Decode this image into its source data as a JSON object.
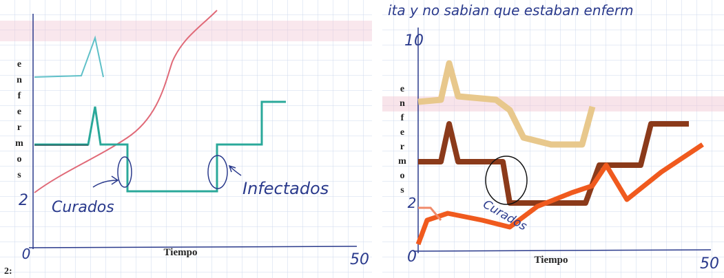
{
  "panels": [
    {
      "y_label_letters": [
        "e",
        "n",
        "f",
        "e",
        "r",
        "m",
        "o",
        "s"
      ],
      "x_label": "Tiempo",
      "x_start": "0",
      "x_end": "50",
      "y_mark": "2",
      "annotations": [
        "Curados",
        "Infectados"
      ]
    },
    {
      "header_note": "ita y no sabian que estaban enferm",
      "y_label_letters": [
        "e",
        "n",
        "f",
        "e",
        "r",
        "m",
        "o",
        "s"
      ],
      "y_top": "10",
      "x_label": "Tiempo",
      "x_start": "0",
      "x_end": "50",
      "y_mark": "2",
      "annotations": [
        "Curados"
      ]
    }
  ],
  "footer": "2:"
}
